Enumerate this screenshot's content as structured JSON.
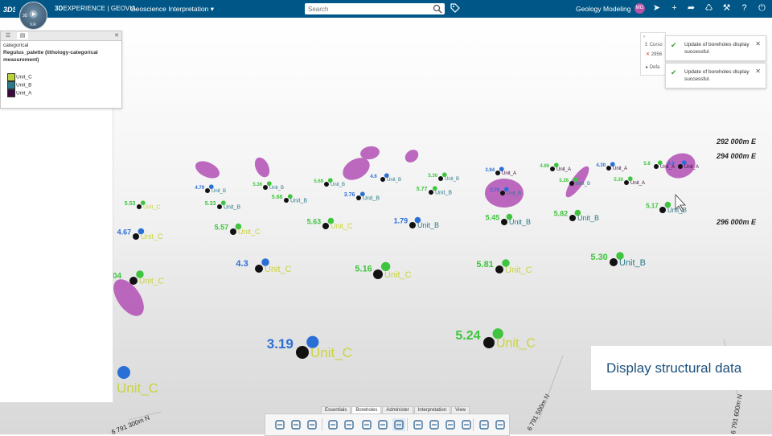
{
  "topbar": {
    "brand_bold": "3D",
    "brand_rest": "EXPERIENCE | GEOVIA",
    "app_title": "Geoscience Interpretation",
    "search_placeholder": "Search",
    "workspace": "Geology Modeling",
    "compass": {
      "top": "3D",
      "center": "V.R"
    }
  },
  "legend": {
    "category": "categorical",
    "palette": "Regulus_palette (lithology-categorical measurement)",
    "items": [
      {
        "label": "Unit_C",
        "color": "#b9d23a"
      },
      {
        "label": "Unit_B",
        "color": "#2c7a89"
      },
      {
        "label": "Unit_A",
        "color": "#3a0b3c"
      }
    ]
  },
  "notif_panel": {
    "row1": "Curso",
    "row2": "2956",
    "row3": "Defa"
  },
  "notifications": [
    {
      "text": "Update of boreholes display successful."
    },
    {
      "text": "Update of boreholes display successful."
    }
  ],
  "callout": "Display structural data",
  "tabs": [
    "Essentials",
    "Boreholes",
    "Administer",
    "Interpretation",
    "View"
  ],
  "grid_labels": {
    "east": [
      "292 000m E",
      "294 000m E",
      "296 000m E"
    ],
    "north": [
      "6 791 300m N",
      "6 791 500m N",
      "6 791 600m N"
    ]
  },
  "colors": {
    "topbar": "#005686",
    "unit_c": "#c9d43c",
    "unit_b": "#2c7a89",
    "unit_a": "#3a0b3c",
    "value_green": "#3ec43e",
    "value_blue": "#2a6fd6",
    "disc": "#b04fb4"
  },
  "scene": {
    "boreholes": [
      {
        "value": "3.19",
        "vcolor": "blue",
        "unit": "Unit_C"
      },
      {
        "value": "5.24",
        "vcolor": "green",
        "unit": "Unit_C"
      },
      {
        "value": "5.16",
        "vcolor": "green",
        "unit": "Unit_C"
      },
      {
        "value": "5.81",
        "vcolor": "green",
        "unit": "Unit_C"
      },
      {
        "value": "5.30",
        "vcolor": "green",
        "unit": "Unit_B"
      },
      {
        "value": "4.3",
        "vcolor": "blue",
        "unit": "Unit_C"
      },
      {
        "value": "04",
        "vcolor": "green",
        "unit": "Unit_C"
      },
      {
        "value": "4.67",
        "vcolor": "blue",
        "unit": "Unit_C"
      },
      {
        "value": "5.57",
        "vcolor": "green",
        "unit": "Unit_C"
      },
      {
        "value": "5.63",
        "vcolor": "green",
        "unit": "Unit_C"
      },
      {
        "value": "1.79",
        "vcolor": "blue",
        "unit": "Unit_B"
      },
      {
        "value": "5.45",
        "vcolor": "green",
        "unit": "Unit_B"
      },
      {
        "value": "5.82",
        "vcolor": "green",
        "unit": "Unit_B"
      },
      {
        "value": "5.17",
        "vcolor": "green",
        "unit": "Unit_B"
      },
      {
        "value": "5.53",
        "vcolor": "green",
        "unit": "Unit_C"
      },
      {
        "value": "5.33",
        "vcolor": "green",
        "unit": "Unit_B"
      },
      {
        "value": "5.68",
        "vcolor": "green",
        "unit": "Unit_B"
      },
      {
        "value": "3.76",
        "vcolor": "blue",
        "unit": "Unit_B"
      },
      {
        "value": "5.77",
        "vcolor": "green",
        "unit": "Unit_B"
      },
      {
        "value": "3.78",
        "vcolor": "blue",
        "unit": "Unit_B"
      },
      {
        "value": "5.26",
        "vcolor": "green",
        "unit": "Unit_B"
      },
      {
        "value": "5.30",
        "vcolor": "green",
        "unit": "Unit_A"
      },
      {
        "value": "4.79",
        "vcolor": "blue",
        "unit": "Unit_B"
      },
      {
        "value": "5.36",
        "vcolor": "green",
        "unit": "Unit_B"
      },
      {
        "value": "5.69",
        "vcolor": "green",
        "unit": "Unit_B"
      },
      {
        "value": "4.6",
        "vcolor": "blue",
        "unit": "Unit_B"
      },
      {
        "value": "5.30",
        "vcolor": "green",
        "unit": "Unit_B"
      },
      {
        "value": "3.94",
        "vcolor": "blue",
        "unit": "Unit_A"
      },
      {
        "value": "4.86",
        "vcolor": "green",
        "unit": "Unit_A"
      },
      {
        "value": "4.30",
        "vcolor": "blue",
        "unit": "Unit_A"
      },
      {
        "value": "5.8",
        "vcolor": "green",
        "unit": "Unit_A"
      },
      {
        "value": "4.9",
        "vcolor": "blue",
        "unit": "Unit_A"
      }
    ]
  }
}
